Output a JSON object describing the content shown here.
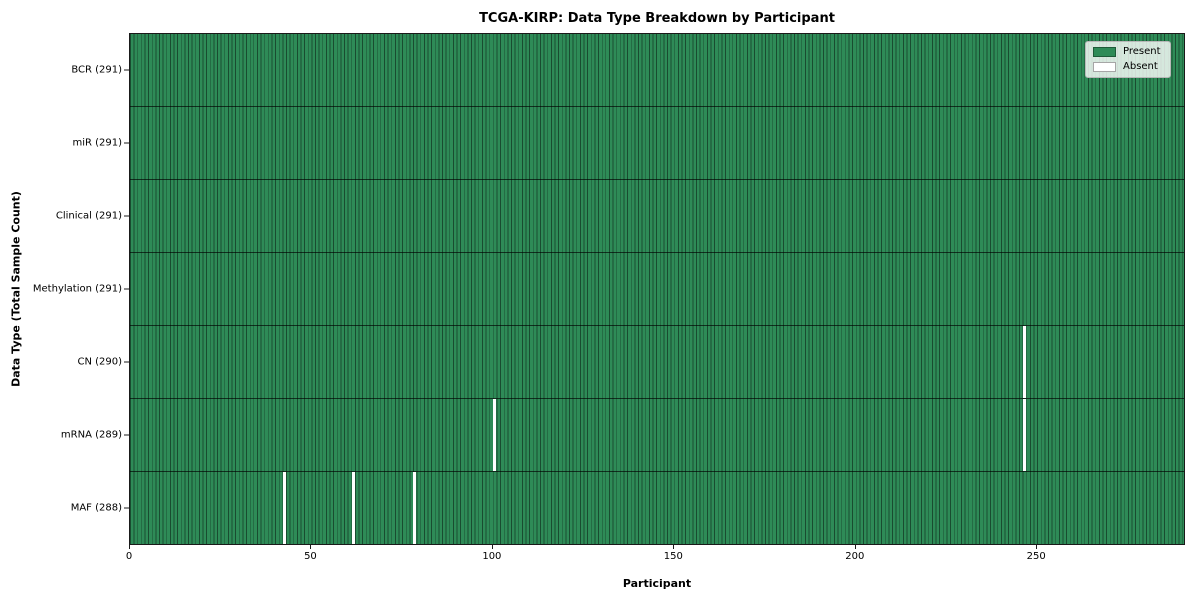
{
  "title": "TCGA-KIRP: Data Type Breakdown by Participant",
  "colors": {
    "present": "#2e8b57",
    "absent": "#ffffff",
    "bar_edge": "rgba(0,0,0,0.45)"
  },
  "legend": {
    "present_label": "Present",
    "absent_label": "Absent"
  },
  "chart_data": {
    "type": "heatmap",
    "title": "TCGA-KIRP: Data Type Breakdown by Participant",
    "xlabel": "Participant",
    "ylabel": "Data Type (Total Sample Count)",
    "x_ticks": [
      0,
      50,
      100,
      150,
      200,
      250
    ],
    "xlim": [
      0,
      291
    ],
    "n_participants": 291,
    "grid": false,
    "legend_position": "upper right",
    "legend": [
      {
        "label": "Present",
        "color": "#2e8b57"
      },
      {
        "label": "Absent",
        "color": "#ffffff"
      }
    ],
    "rows": [
      {
        "label": "BCR (291)",
        "data_type": "BCR",
        "total": 291,
        "absent_participants": []
      },
      {
        "label": "miR (291)",
        "data_type": "miR",
        "total": 291,
        "absent_participants": []
      },
      {
        "label": "Clinical (291)",
        "data_type": "Clinical",
        "total": 291,
        "absent_participants": []
      },
      {
        "label": "Methylation (291)",
        "data_type": "Methylation",
        "total": 291,
        "absent_participants": []
      },
      {
        "label": "CN (290)",
        "data_type": "CN",
        "total": 290,
        "absent_participants": [
          246
        ]
      },
      {
        "label": "mRNA (289)",
        "data_type": "mRNA",
        "total": 289,
        "absent_participants": [
          100,
          246
        ]
      },
      {
        "label": "MAF (288)",
        "data_type": "MAF",
        "total": 288,
        "absent_participants": [
          42,
          61,
          78
        ]
      }
    ]
  }
}
